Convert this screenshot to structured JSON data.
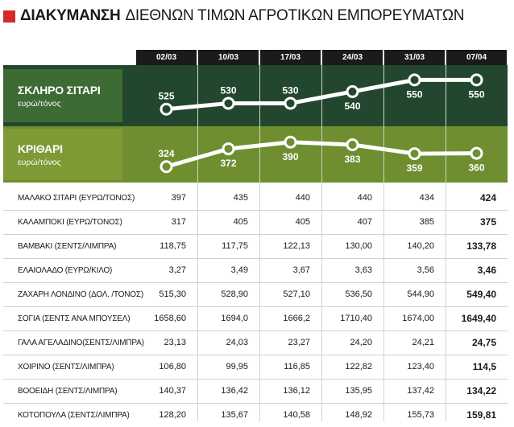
{
  "title": {
    "bold": "ΔΙΑΚΥΜΑΝΣΗ",
    "rest": "ΔΙΕΘΝΩΝ ΤΙΜΩΝ ΑΓΡΟΤΙΚΩΝ ΕΜΠΟΡΕΥΜΑΤΩΝ",
    "accent": "#d42a2a"
  },
  "colors": {
    "band1": "#23472e",
    "band1_label": "#3c6b33",
    "band2": "#6e8e2f",
    "band2_label": "#7e9a35",
    "date_bg": "#1b1b1b"
  },
  "chart_data": {
    "type": "line",
    "categories": [
      "02/03",
      "10/03",
      "17/03",
      "24/03",
      "31/03",
      "07/04"
    ],
    "series": [
      {
        "name": "ΣΚΛΗΡΟ ΣΙΤΑΡΙ",
        "unit": "ευρώ/τόνος",
        "values": [
          525,
          530,
          530,
          540,
          550,
          550
        ]
      },
      {
        "name": "ΚΡΙΘΑΡΙ",
        "unit": "ευρώ/τόνος",
        "values": [
          324,
          372,
          390,
          383,
          359,
          360
        ]
      }
    ],
    "table": {
      "rows": [
        {
          "name": "ΜΑΛΑΚΟ ΣΙΤΑΡΙ (ΕΥΡΩ/ΤΟΝΟΣ)",
          "values": [
            "397",
            "435",
            "440",
            "440",
            "434",
            "424"
          ]
        },
        {
          "name": "ΚΑΛΑΜΠΟΚΙ (ΕΥΡΩ/ΤΟΝΟΣ)",
          "values": [
            "317",
            "405",
            "405",
            "407",
            "385",
            "375"
          ]
        },
        {
          "name": "ΒΑΜΒΑΚΙ (ΣΕΝΤΣ/ΛΙΜΠΡΑ)",
          "values": [
            "118,75",
            "117,75",
            "122,13",
            "130,00",
            "140,20",
            "133,78"
          ]
        },
        {
          "name": "ΕΛΑΙΟΛΑΔΟ (ΕΥΡΩ/ΚΙΛΟ)",
          "values": [
            "3,27",
            "3,49",
            "3,67",
            "3,63",
            "3,56",
            "3,46"
          ]
        },
        {
          "name": "ΖΑΧΑΡΗ ΛΟΝΔΙΝΟ (ΔΟΛ. /ΤΟΝΟΣ)",
          "values": [
            "515,30",
            "528,90",
            "527,10",
            "536,50",
            "544,90",
            "549,40"
          ]
        },
        {
          "name": "ΣΟΓΙΑ (ΣΕΝΤΣ ΑΝΑ ΜΠΟΥΣΕΛ)",
          "values": [
            "1658,60",
            "1694,0",
            "1666,2",
            "1710,40",
            "1674,00",
            "1649,40"
          ]
        },
        {
          "name": "ΓΑΛΑ ΑΓΕΛΑΔΙΝΟ(ΣΕΝΤΣ/ΛΙΜΠΡΑ)",
          "values": [
            "23,13",
            "24,03",
            "23,27",
            "24,20",
            "24,21",
            "24,75"
          ]
        },
        {
          "name": "ΧΟΙΡΙΝΟ (ΣΕΝΤΣ/ΛΙΜΠΡΑ)",
          "values": [
            "106,80",
            "99,95",
            "116,85",
            "122,82",
            "123,40",
            "114,5"
          ]
        },
        {
          "name": "ΒΟΟΕΙΔΗ (ΣΕΝΤΣ/ΛΙΜΠΡΑ)",
          "values": [
            "140,37",
            "136,42",
            "136,12",
            "135,95",
            "137,42",
            "134,22"
          ]
        },
        {
          "name": "ΚΟΤΟΠΟΥΛΑ (ΣΕΝΤΣ/ΛΙΜΠΡΑ)",
          "values": [
            "128,20",
            "135,67",
            "140,58",
            "148,92",
            "155,73",
            "159,81"
          ]
        }
      ]
    }
  }
}
